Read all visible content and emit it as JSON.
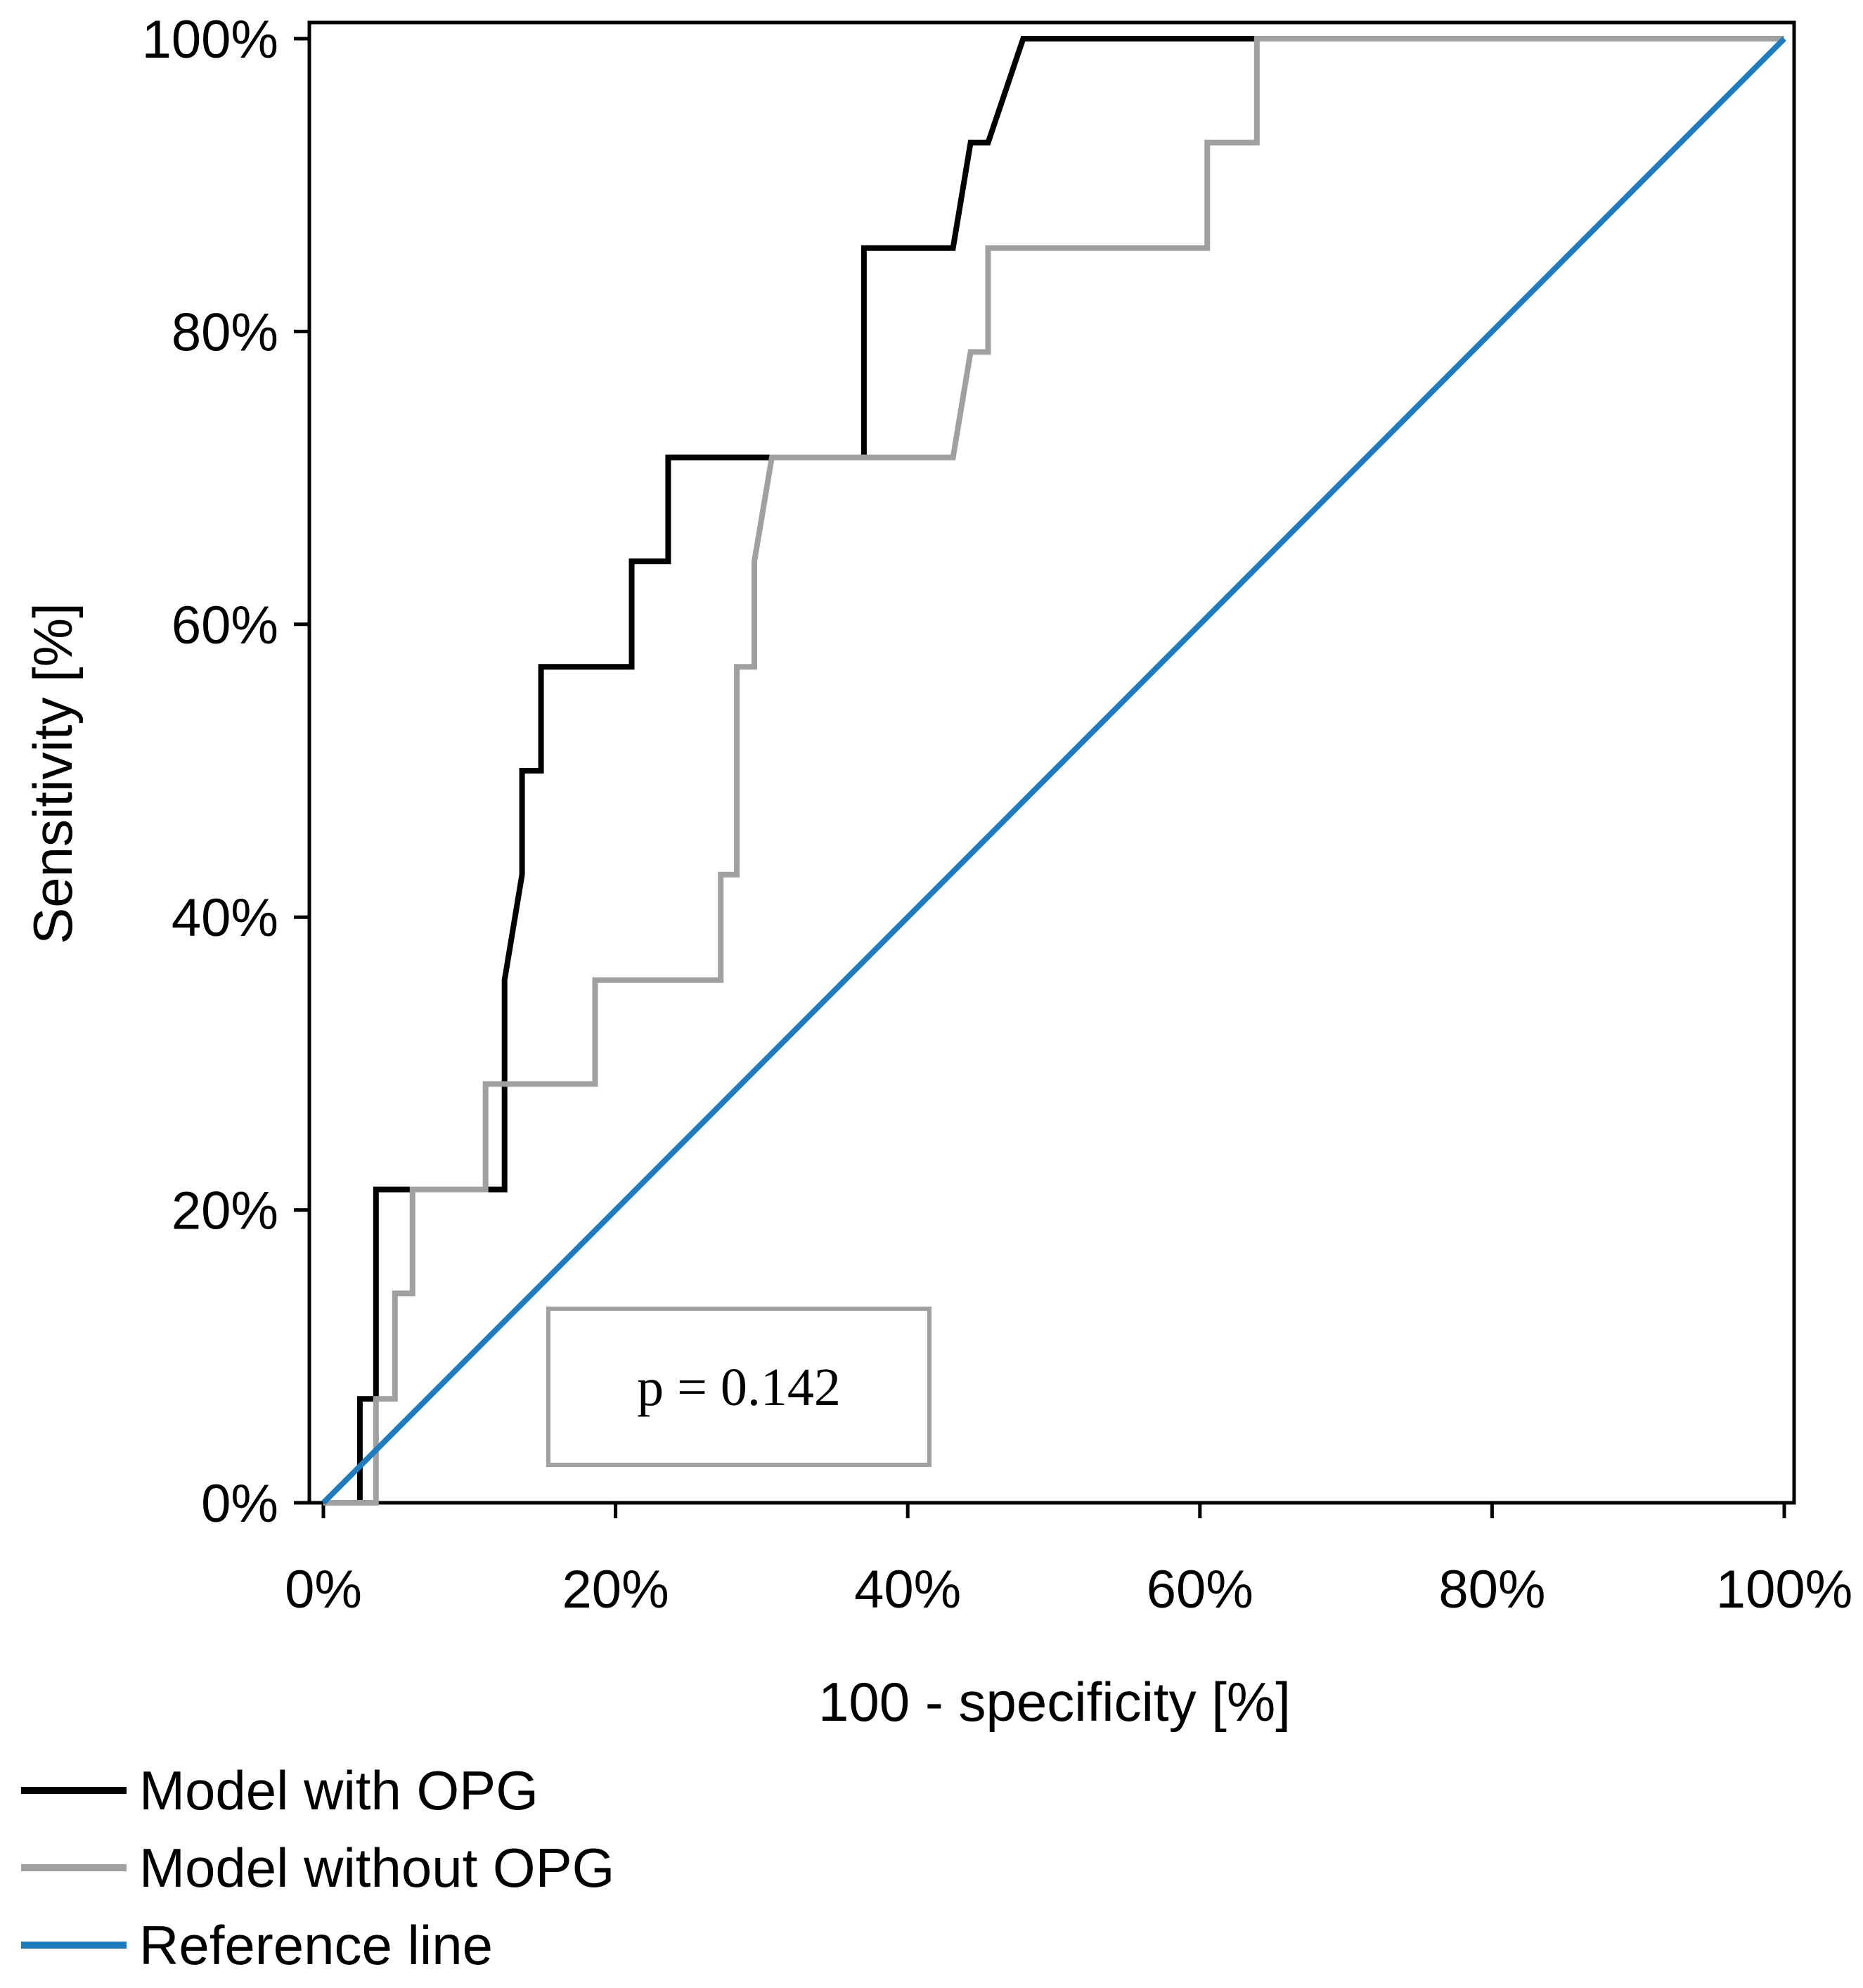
{
  "chart_data": {
    "type": "line",
    "title": "",
    "xlabel": "100 - specificity [%]",
    "ylabel": "Sensitivity [%]",
    "xlim": [
      0,
      100
    ],
    "ylim": [
      0,
      100
    ],
    "x_ticks": [
      "0%",
      "20%",
      "40%",
      "60%",
      "80%",
      "100%"
    ],
    "y_ticks": [
      "0%",
      "20%",
      "40%",
      "60%",
      "80%",
      "100%"
    ],
    "grid": false,
    "legend_position": "bottom-left",
    "annotation": {
      "text": "p = 0.142"
    },
    "series": [
      {
        "name": "Model with OPG",
        "color": "#000000",
        "x": [
          2.5,
          2.5,
          3.6,
          3.6,
          12.4,
          12.4,
          13.6,
          13.6,
          14.9,
          14.9,
          21.1,
          21.1,
          23.6,
          23.6,
          37.0,
          37.0,
          43.1,
          44.3,
          45.5,
          47.9,
          100
        ],
        "y": [
          0,
          7.1,
          7.1,
          21.4,
          21.4,
          35.7,
          42.9,
          50.0,
          50.0,
          57.1,
          57.1,
          64.3,
          64.3,
          71.4,
          71.4,
          85.7,
          85.7,
          92.9,
          92.9,
          100,
          100
        ]
      },
      {
        "name": "Model without OPG",
        "color": "#A0A0A0",
        "x": [
          0,
          3.6,
          3.6,
          4.9,
          4.9,
          6.1,
          6.1,
          11.1,
          11.1,
          18.6,
          18.6,
          27.2,
          27.2,
          28.3,
          28.3,
          29.5,
          29.5,
          30.7,
          43.1,
          44.3,
          45.5,
          45.5,
          60.5,
          60.5,
          63.9,
          63.9,
          100
        ],
        "y": [
          0,
          0,
          7.1,
          7.1,
          14.3,
          14.3,
          21.4,
          21.4,
          28.6,
          28.6,
          35.7,
          35.7,
          42.9,
          42.9,
          57.1,
          57.1,
          64.3,
          71.4,
          71.4,
          78.6,
          78.6,
          85.7,
          85.7,
          92.9,
          92.9,
          100,
          100
        ]
      },
      {
        "name": "Reference line",
        "color": "#1F7BBF",
        "x": [
          0,
          100
        ],
        "y": [
          0,
          100
        ]
      }
    ]
  }
}
